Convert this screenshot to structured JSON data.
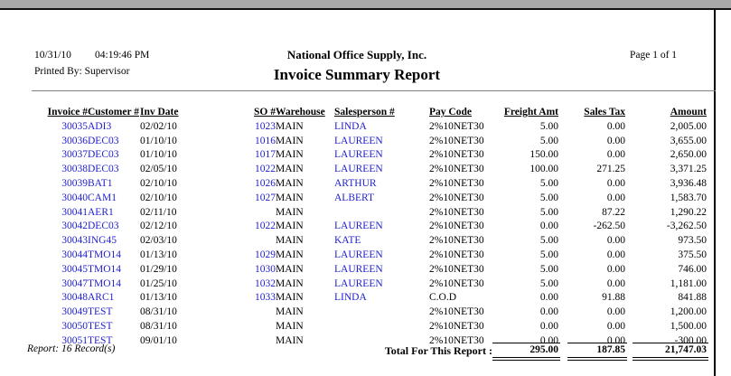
{
  "header": {
    "date": "10/31/10",
    "time": "04:19:46 PM",
    "company": "National Office Supply, Inc.",
    "page": "Page 1 of 1",
    "printed_by": "Printed By: Supervisor",
    "title": "Invoice Summary Report"
  },
  "table": {
    "columns": [
      "Invoice #",
      "Customer #",
      "Inv Date",
      "SO #",
      "Warehouse",
      "Salesperson #",
      "Pay Code",
      "Freight Amt",
      "Sales Tax",
      "Amount"
    ],
    "rows": [
      [
        "30035",
        "ADI3",
        "02/02/10",
        "1023",
        "MAIN",
        "LINDA",
        "2%10NET30",
        "5.00",
        "0.00",
        "2,005.00"
      ],
      [
        "30036",
        "DEC03",
        "01/10/10",
        "1016",
        "MAIN",
        "LAUREEN",
        "2%10NET30",
        "5.00",
        "0.00",
        "3,655.00"
      ],
      [
        "30037",
        "DEC03",
        "01/10/10",
        "1017",
        "MAIN",
        "LAUREEN",
        "2%10NET30",
        "150.00",
        "0.00",
        "2,650.00"
      ],
      [
        "30038",
        "DEC03",
        "02/05/10",
        "1022",
        "MAIN",
        "LAUREEN",
        "2%10NET30",
        "100.00",
        "271.25",
        "3,371.25"
      ],
      [
        "30039",
        "BAT1",
        "02/10/10",
        "1026",
        "MAIN",
        "ARTHUR",
        "2%10NET30",
        "5.00",
        "0.00",
        "3,936.48"
      ],
      [
        "30040",
        "CAM1",
        "02/10/10",
        "1027",
        "MAIN",
        "ALBERT",
        "2%10NET30",
        "5.00",
        "0.00",
        "1,583.70"
      ],
      [
        "30041",
        "AER1",
        "02/11/10",
        "",
        "MAIN",
        "",
        "2%10NET30",
        "5.00",
        "87.22",
        "1,290.22"
      ],
      [
        "30042",
        "DEC03",
        "02/12/10",
        "1022",
        "MAIN",
        "LAUREEN",
        "2%10NET30",
        "0.00",
        "-262.50",
        "-3,262.50"
      ],
      [
        "30043",
        "ING45",
        "02/03/10",
        "",
        "MAIN",
        "KATE",
        "2%10NET30",
        "5.00",
        "0.00",
        "973.50"
      ],
      [
        "30044",
        "TMO14",
        "01/13/10",
        "1029",
        "MAIN",
        "LAUREEN",
        "2%10NET30",
        "5.00",
        "0.00",
        "375.50"
      ],
      [
        "30045",
        "TMO14",
        "01/29/10",
        "1030",
        "MAIN",
        "LAUREEN",
        "2%10NET30",
        "5.00",
        "0.00",
        "746.00"
      ],
      [
        "30047",
        "TMO14",
        "01/25/10",
        "1032",
        "MAIN",
        "LAUREEN",
        "2%10NET30",
        "5.00",
        "0.00",
        "1,181.00"
      ],
      [
        "30048",
        "ARC1",
        "01/13/10",
        "1033",
        "MAIN",
        "LINDA",
        "C.O.D",
        "0.00",
        "91.88",
        "841.88"
      ],
      [
        "30049",
        "TEST",
        "08/31/10",
        "",
        "MAIN",
        "",
        "2%10NET30",
        "0.00",
        "0.00",
        "1,200.00"
      ],
      [
        "30050",
        "TEST",
        "08/31/10",
        "",
        "MAIN",
        "",
        "2%10NET30",
        "0.00",
        "0.00",
        "1,500.00"
      ],
      [
        "30051",
        "TEST",
        "09/01/10",
        "",
        "MAIN",
        "",
        "2%10NET30",
        "0.00",
        "0.00",
        "-300.00"
      ]
    ]
  },
  "footer": {
    "record_count": "Report: 16 Record(s)",
    "total_label": "Total For This Report :",
    "total_freight": "295.00",
    "total_sales_tax": "187.85",
    "total_amount": "21,747.03"
  },
  "colors": {
    "link_blue": "#2121cc",
    "chrome_gray": "#a9a9a9"
  }
}
